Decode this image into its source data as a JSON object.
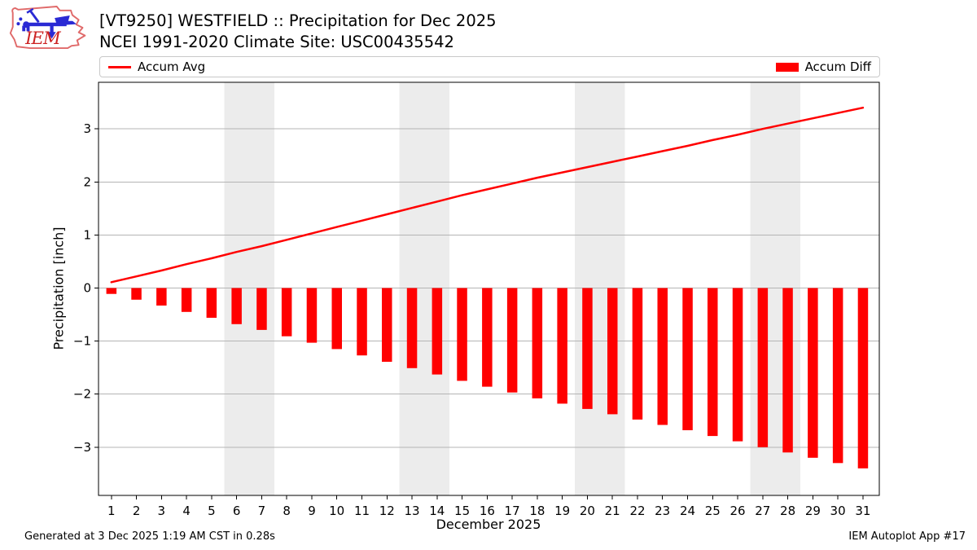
{
  "header": {
    "logo_text": "IEM",
    "title_line1": "[VT9250] WESTFIELD :: Precipitation for Dec 2025",
    "title_line2": "NCEI 1991-2020 Climate Site: USC00435542"
  },
  "legend": {
    "line_label": "Accum Avg",
    "bar_label": "Accum Diff"
  },
  "footer": {
    "left": "Generated at 3 Dec 2025 1:19 AM CST in 0.28s",
    "right": "IEM Autoplot App #17"
  },
  "colors": {
    "series_red": "#ff0000",
    "weekend_band": "#ececec",
    "gridline": "#b4b4b4",
    "axis": "#000000",
    "logo_outline": "#e06a6a",
    "logo_instrument": "#2a2ad4",
    "logo_text": "#cc2222"
  },
  "chart_data": {
    "type": "bar",
    "title": "[VT9250] WESTFIELD :: Precipitation for Dec 2025 | NCEI 1991-2020 Climate Site: USC00435542",
    "xlabel": "December 2025",
    "ylabel": "Precipitation [inch]",
    "legend_position": "top",
    "grid": true,
    "x": [
      1,
      2,
      3,
      4,
      5,
      6,
      7,
      8,
      9,
      10,
      11,
      12,
      13,
      14,
      15,
      16,
      17,
      18,
      19,
      20,
      21,
      22,
      23,
      24,
      25,
      26,
      27,
      28,
      29,
      30,
      31
    ],
    "series": [
      {
        "name": "Accum Avg",
        "type": "line",
        "color": "#ff0000",
        "values": [
          0.11,
          0.22,
          0.33,
          0.45,
          0.56,
          0.68,
          0.79,
          0.91,
          1.03,
          1.15,
          1.27,
          1.39,
          1.51,
          1.63,
          1.75,
          1.86,
          1.97,
          2.08,
          2.18,
          2.28,
          2.38,
          2.48,
          2.58,
          2.68,
          2.79,
          2.89,
          3.0,
          3.1,
          3.2,
          3.3,
          3.4
        ]
      },
      {
        "name": "Accum Diff",
        "type": "bar",
        "color": "#ff0000",
        "values": [
          -0.11,
          -0.22,
          -0.33,
          -0.45,
          -0.56,
          -0.68,
          -0.79,
          -0.91,
          -1.03,
          -1.15,
          -1.27,
          -1.39,
          -1.51,
          -1.63,
          -1.75,
          -1.86,
          -1.97,
          -2.08,
          -2.18,
          -2.28,
          -2.38,
          -2.48,
          -2.58,
          -2.68,
          -2.79,
          -2.89,
          -3.0,
          -3.1,
          -3.2,
          -3.3,
          -3.4
        ]
      }
    ],
    "ylim": [
      -3.91,
      3.88
    ],
    "yticks": [
      3,
      2,
      1,
      0,
      -1,
      -2,
      -3
    ],
    "weekend_bands": [
      [
        5.5,
        7.5
      ],
      [
        12.5,
        14.5
      ],
      [
        19.5,
        21.5
      ],
      [
        26.5,
        28.5
      ]
    ]
  }
}
